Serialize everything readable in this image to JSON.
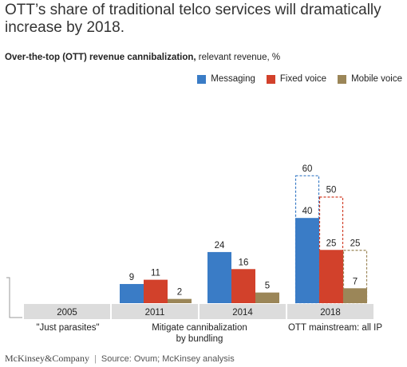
{
  "headline": "OTT’s share of traditional telco services will dramatically increase by 2018.",
  "subtitle_bold": "Over-the-top (OTT) revenue cannibalization,",
  "subtitle_rest": " relevant revenue, %",
  "footer": {
    "brand": "McKinsey&Company",
    "separator": "|",
    "source": "Source: Ovum; McKinsey analysis"
  },
  "colors": {
    "messaging": "#3a7cc6",
    "fixed_voice": "#d2412b",
    "mobile_voice": "#9b8658",
    "category_bar": "#dcdcdc"
  },
  "chart_data": {
    "type": "bar",
    "categories": [
      "2005",
      "2011",
      "2014",
      "2018"
    ],
    "series": [
      {
        "name": "Messaging",
        "color": "#3a7cc6",
        "values": [
          null,
          9,
          24,
          40
        ],
        "projected": [
          null,
          null,
          null,
          60
        ]
      },
      {
        "name": "Fixed voice",
        "color": "#d2412b",
        "values": [
          null,
          11,
          16,
          25
        ],
        "projected": [
          null,
          null,
          null,
          50
        ]
      },
      {
        "name": "Mobile voice",
        "color": "#9b8658",
        "values": [
          null,
          2,
          5,
          7
        ],
        "projected": [
          null,
          null,
          null,
          25
        ]
      }
    ],
    "phase_labels": [
      "\"Just parasites\"",
      "Mitigate cannibalization by bundling",
      "OTT mainstream: all IP"
    ],
    "legend_position": "top-right",
    "grid": false,
    "ylim": [
      0,
      60
    ]
  }
}
